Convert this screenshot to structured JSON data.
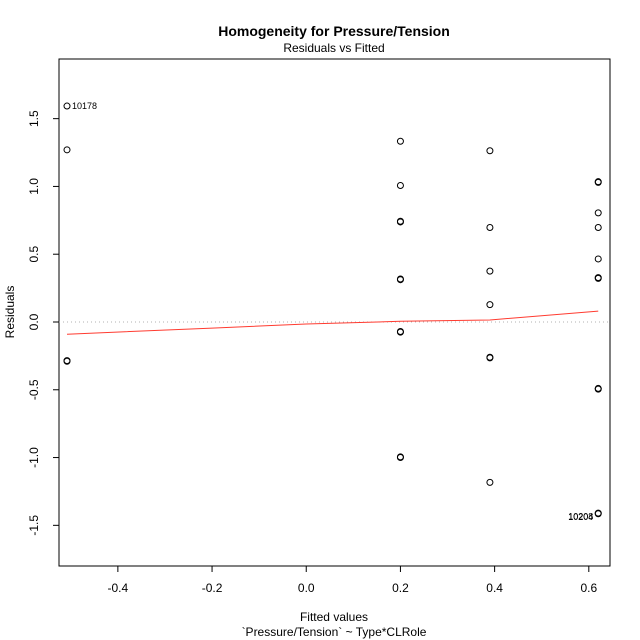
{
  "chart_data": {
    "type": "scatter",
    "title": "Homogeneity for Pressure/Tension",
    "subtitle": "Residuals vs Fitted",
    "xlabel": "Fitted values",
    "xlabel_sub": "`Pressure/Tension` ~ Type*CLRole",
    "ylabel": "Residuals",
    "xlim": [
      -0.525,
      0.645
    ],
    "ylim": [
      -1.8,
      1.94
    ],
    "x_ticks": [
      -0.4,
      -0.2,
      0.0,
      0.2,
      0.4,
      0.6
    ],
    "x_tick_labels": [
      "-0.4",
      "-0.2",
      "0.0",
      "0.2",
      "0.4",
      "0.6"
    ],
    "y_ticks": [
      -1.5,
      -1.0,
      -0.5,
      0.0,
      0.5,
      1.0,
      1.5
    ],
    "y_tick_labels": [
      "-1.5",
      "-1.0",
      "-0.5",
      "0.0",
      "0.5",
      "1.0",
      "1.5"
    ],
    "reference_line_y": 0,
    "points": [
      {
        "x": -0.508,
        "y": 1.593
      },
      {
        "x": -0.508,
        "y": 1.27
      },
      {
        "x": -0.508,
        "y": -0.285
      },
      {
        "x": -0.508,
        "y": -0.29
      },
      {
        "x": 0.2,
        "y": 1.333
      },
      {
        "x": 0.2,
        "y": 1.007
      },
      {
        "x": 0.2,
        "y": 0.743
      },
      {
        "x": 0.2,
        "y": 0.738
      },
      {
        "x": 0.2,
        "y": 0.317
      },
      {
        "x": 0.2,
        "y": 0.312
      },
      {
        "x": 0.2,
        "y": -0.07
      },
      {
        "x": 0.2,
        "y": -0.075
      },
      {
        "x": 0.2,
        "y": -0.995
      },
      {
        "x": 0.2,
        "y": -1.0
      },
      {
        "x": 0.39,
        "y": 1.263
      },
      {
        "x": 0.39,
        "y": 0.697
      },
      {
        "x": 0.39,
        "y": 0.375
      },
      {
        "x": 0.39,
        "y": 0.128
      },
      {
        "x": 0.39,
        "y": -0.26
      },
      {
        "x": 0.39,
        "y": -0.265
      },
      {
        "x": 0.39,
        "y": -1.183
      },
      {
        "x": 0.62,
        "y": 1.035
      },
      {
        "x": 0.62,
        "y": 1.03
      },
      {
        "x": 0.62,
        "y": 0.805
      },
      {
        "x": 0.62,
        "y": 0.697
      },
      {
        "x": 0.62,
        "y": 0.465
      },
      {
        "x": 0.62,
        "y": 0.327
      },
      {
        "x": 0.62,
        "y": 0.322
      },
      {
        "x": 0.62,
        "y": -0.49
      },
      {
        "x": 0.62,
        "y": -0.495
      },
      {
        "x": 0.62,
        "y": -1.41
      },
      {
        "x": 0.62,
        "y": -1.415
      }
    ],
    "point_labels": [
      {
        "text": "10178",
        "x": -0.508,
        "y": 1.593,
        "side": "right"
      },
      {
        "text": "10208",
        "x": 0.62,
        "y": -1.435,
        "side": "left"
      },
      {
        "text": "10204",
        "x": 0.62,
        "y": -1.44,
        "side": "left"
      }
    ],
    "smooth_line": [
      {
        "x": -0.508,
        "y": -0.09
      },
      {
        "x": -0.2,
        "y": -0.045
      },
      {
        "x": 0.0,
        "y": -0.015
      },
      {
        "x": 0.2,
        "y": 0.005
      },
      {
        "x": 0.39,
        "y": 0.015
      },
      {
        "x": 0.62,
        "y": 0.08
      }
    ],
    "colors": {
      "points": "#000000",
      "smooth_line": "#ff3b30",
      "reference_line": "#b0b0b0",
      "axes": "#000000"
    }
  }
}
